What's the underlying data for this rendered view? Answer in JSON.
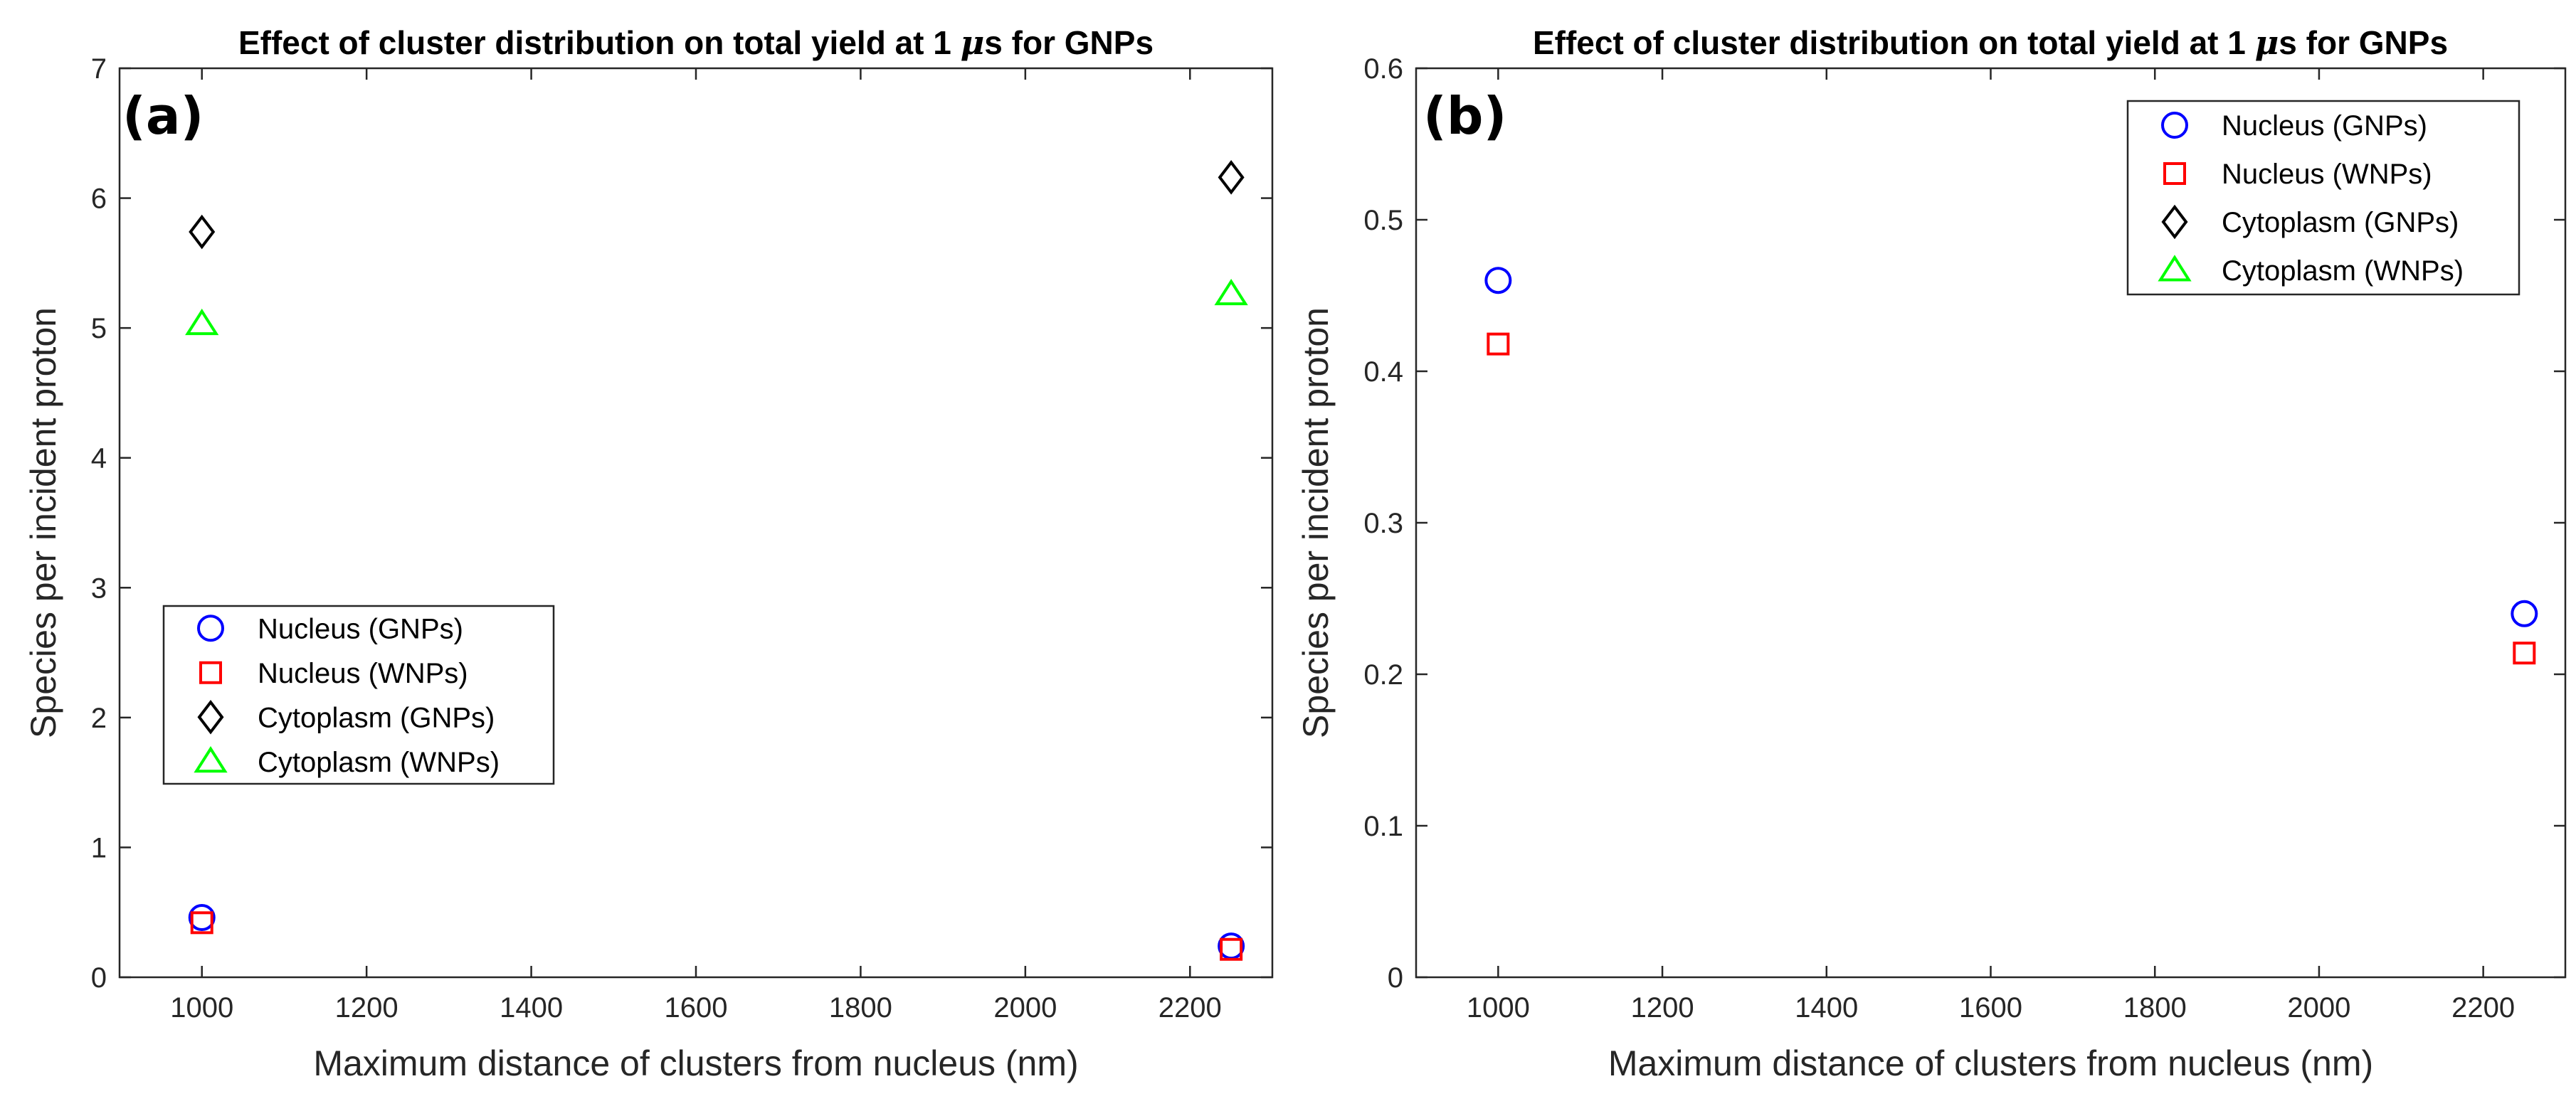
{
  "figure": {
    "panels": [
      "(a)",
      "(b)"
    ]
  },
  "chart_data": [
    {
      "type": "scatter",
      "panel_label": "(a)",
      "title_prefix": "Effect of cluster distribution on total yield at 1 ",
      "title_mu": "μ",
      "title_suffix": "s for GNPs",
      "xlabel": "Maximum distance of clusters from nucleus (nm)",
      "ylabel": "Species per incident proton",
      "xlim": [
        900,
        2300
      ],
      "ylim": [
        0,
        7
      ],
      "xticks": [
        1000,
        1200,
        1400,
        1600,
        1800,
        2000,
        2200
      ],
      "yticks": [
        0,
        1,
        2,
        3,
        4,
        5,
        6,
        7
      ],
      "ytick_labels": [
        "0",
        "1",
        "2",
        "3",
        "4",
        "5",
        "6",
        "7"
      ],
      "grid": false,
      "legend_position": "middle-left",
      "series": [
        {
          "name": "Nucleus (GNPs)",
          "marker": "circle",
          "color": "#0000ff",
          "x": [
            1000,
            2250
          ],
          "values": [
            0.46,
            0.24
          ]
        },
        {
          "name": "Nucleus (WNPs)",
          "marker": "square",
          "color": "#ff0000",
          "x": [
            1000,
            2250
          ],
          "values": [
            0.42,
            0.215
          ]
        },
        {
          "name": "Cytoplasm (GNPs)",
          "marker": "diamond",
          "color": "#000000",
          "x": [
            1000,
            2250
          ],
          "values": [
            5.74,
            6.16
          ]
        },
        {
          "name": "Cytoplasm (WNPs)",
          "marker": "triangle",
          "color": "#00ff00",
          "x": [
            1000,
            2250
          ],
          "values": [
            5.03,
            5.26
          ]
        }
      ]
    },
    {
      "type": "scatter",
      "panel_label": "(b)",
      "title_prefix": "Effect of cluster distribution on total yield at 1 ",
      "title_mu": "μ",
      "title_suffix": "s for GNPs",
      "xlabel": "Maximum distance of clusters from nucleus (nm)",
      "ylabel": "Species per incident proton",
      "xlim": [
        900,
        2300
      ],
      "ylim": [
        0,
        0.6
      ],
      "xticks": [
        1000,
        1200,
        1400,
        1600,
        1800,
        2000,
        2200
      ],
      "yticks": [
        0,
        0.1,
        0.2,
        0.3,
        0.4,
        0.5,
        0.6
      ],
      "ytick_labels": [
        "0",
        "0.1",
        "0.2",
        "0.3",
        "0.4",
        "0.5",
        "0.6"
      ],
      "grid": false,
      "legend_position": "top-right",
      "series": [
        {
          "name": "Nucleus (GNPs)",
          "marker": "circle",
          "color": "#0000ff",
          "x": [
            1000,
            2250
          ],
          "values": [
            0.46,
            0.24
          ]
        },
        {
          "name": "Nucleus (WNPs)",
          "marker": "square",
          "color": "#ff0000",
          "x": [
            1000,
            2250
          ],
          "values": [
            0.418,
            0.214
          ]
        },
        {
          "name": "Cytoplasm (GNPs)",
          "marker": "diamond",
          "color": "#000000",
          "x": [],
          "values": []
        },
        {
          "name": "Cytoplasm (WNPs)",
          "marker": "triangle",
          "color": "#00ff00",
          "x": [],
          "values": []
        }
      ]
    }
  ]
}
